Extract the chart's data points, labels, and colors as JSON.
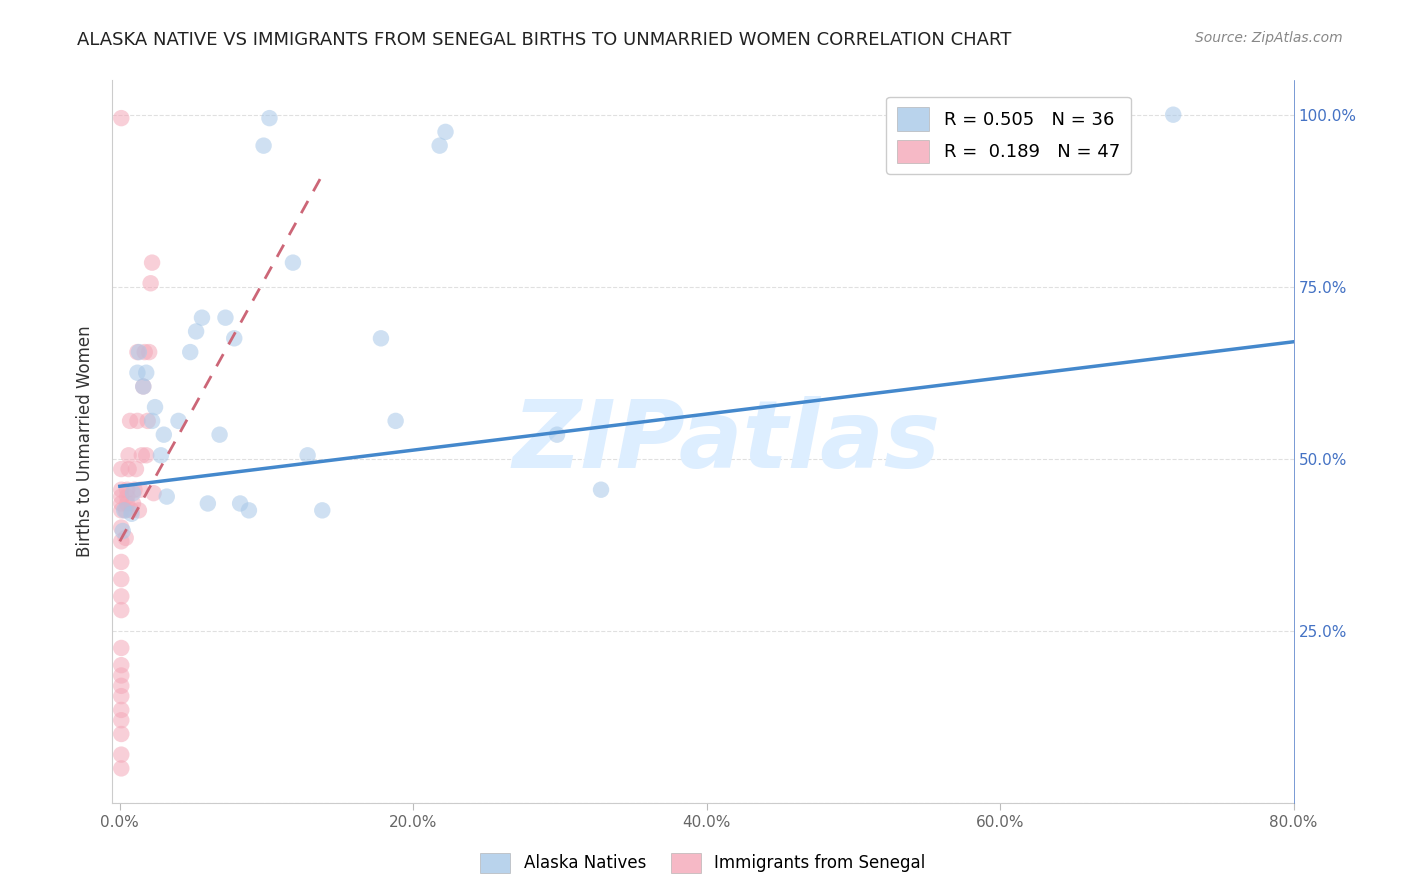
{
  "title": "ALASKA NATIVE VS IMMIGRANTS FROM SENEGAL BIRTHS TO UNMARRIED WOMEN CORRELATION CHART",
  "source": "Source: ZipAtlas.com",
  "ylabel": "Births to Unmarried Women",
  "legend_blue_r": "0.505",
  "legend_blue_n": "36",
  "legend_pink_r": "0.189",
  "legend_pink_n": "47",
  "blue_color": "#a8c8e8",
  "pink_color": "#f4a8b8",
  "trend_blue": "#4488cc",
  "trend_pink": "#cc6677",
  "watermark": "ZIPatlas",
  "watermark_color": "#ddeeff",
  "blue_x": [
    0.002,
    0.003,
    0.008,
    0.009,
    0.012,
    0.013,
    0.016,
    0.018,
    0.022,
    0.024,
    0.028,
    0.03,
    0.032,
    0.04,
    0.048,
    0.052,
    0.056,
    0.06,
    0.068,
    0.072,
    0.078,
    0.082,
    0.088,
    0.098,
    0.102,
    0.118,
    0.128,
    0.138,
    0.178,
    0.188,
    0.218,
    0.222,
    0.298,
    0.328,
    0.678,
    0.718
  ],
  "blue_y": [
    0.395,
    0.425,
    0.42,
    0.45,
    0.625,
    0.655,
    0.605,
    0.625,
    0.555,
    0.575,
    0.505,
    0.535,
    0.445,
    0.555,
    0.655,
    0.685,
    0.705,
    0.435,
    0.535,
    0.705,
    0.675,
    0.435,
    0.425,
    0.955,
    0.995,
    0.785,
    0.505,
    0.425,
    0.675,
    0.555,
    0.955,
    0.975,
    0.535,
    0.455,
    0.975,
    1.0
  ],
  "pink_x": [
    0.001,
    0.001,
    0.001,
    0.001,
    0.001,
    0.001,
    0.001,
    0.001,
    0.001,
    0.001,
    0.001,
    0.001,
    0.001,
    0.001,
    0.001,
    0.001,
    0.001,
    0.001,
    0.001,
    0.001,
    0.001,
    0.001,
    0.004,
    0.004,
    0.005,
    0.005,
    0.005,
    0.006,
    0.006,
    0.007,
    0.008,
    0.009,
    0.01,
    0.011,
    0.012,
    0.012,
    0.013,
    0.014,
    0.015,
    0.016,
    0.017,
    0.018,
    0.019,
    0.02,
    0.021,
    0.022,
    0.023
  ],
  "pink_y": [
    0.05,
    0.07,
    0.1,
    0.12,
    0.135,
    0.155,
    0.17,
    0.185,
    0.2,
    0.225,
    0.28,
    0.3,
    0.325,
    0.35,
    0.38,
    0.4,
    0.425,
    0.435,
    0.445,
    0.455,
    0.485,
    0.995,
    0.385,
    0.425,
    0.435,
    0.445,
    0.455,
    0.485,
    0.505,
    0.555,
    0.425,
    0.435,
    0.455,
    0.485,
    0.555,
    0.655,
    0.425,
    0.455,
    0.505,
    0.605,
    0.655,
    0.505,
    0.555,
    0.655,
    0.755,
    0.785,
    0.45
  ],
  "blue_trend_x": [
    0.0,
    0.8
  ],
  "blue_trend_y": [
    0.46,
    0.67
  ],
  "pink_trend_x": [
    0.0,
    0.14
  ],
  "pink_trend_y": [
    0.38,
    0.92
  ],
  "xlim": [
    -0.005,
    0.8
  ],
  "ylim": [
    0.0,
    1.05
  ],
  "xticks": [
    0.0,
    0.2,
    0.4,
    0.6,
    0.8
  ],
  "xtick_labels": [
    "0.0%",
    "20.0%",
    "40.0%",
    "60.0%",
    "80.0%"
  ],
  "yticks_right": [
    0.25,
    0.5,
    0.75,
    1.0
  ],
  "ytick_right_labels": [
    "25.0%",
    "50.0%",
    "75.0%",
    "100.0%"
  ],
  "grid_color": "#dddddd",
  "title_fontsize": 13,
  "source_fontsize": 10
}
